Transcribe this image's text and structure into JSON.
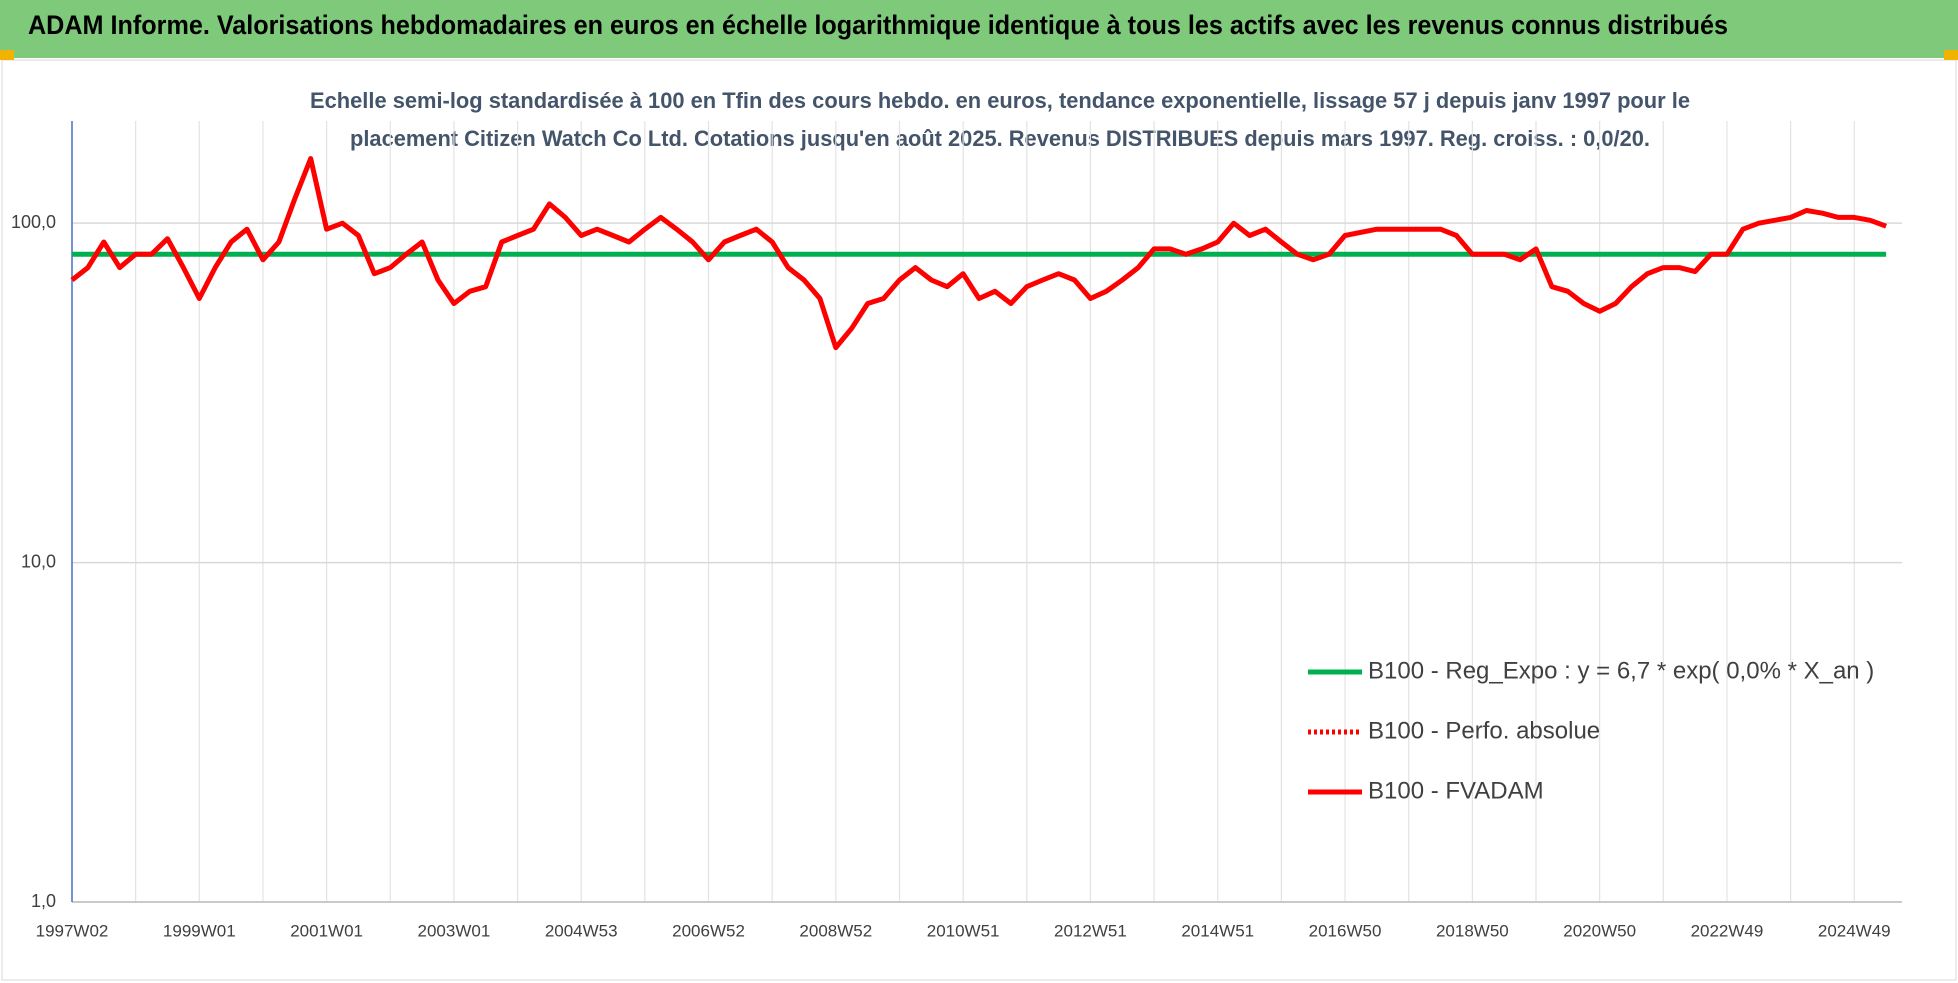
{
  "header": {
    "title": "ADAM Informe. Valorisations hebdomadaires en euros en échelle logarithmique identique à tous les actifs avec les revenus connus distribués"
  },
  "chart_data": {
    "type": "line",
    "title_lines": [
      "Echelle semi-log standardisée à 100 en Tfin des cours hebdo. en euros, tendance exponentielle, lissage 57 j depuis janv 1997 pour le",
      "placement Citizen Watch Co Ltd. Cotations jusqu'en août 2025. Revenus DISTRIBUES depuis mars 1997. Reg. croiss. : 0,0/20."
    ],
    "log_scale": true,
    "grid": true,
    "ylim": [
      1,
      200
    ],
    "yticks": [
      {
        "value": 1,
        "label": "1,0"
      },
      {
        "value": 10,
        "label": "10,0"
      },
      {
        "value": 100,
        "label": "100,0"
      }
    ],
    "categories": [
      "1997W02",
      null,
      null,
      null,
      null,
      null,
      null,
      null,
      "1999W01",
      null,
      null,
      null,
      null,
      null,
      null,
      null,
      "2001W01",
      null,
      null,
      null,
      null,
      null,
      null,
      null,
      "2003W01",
      null,
      null,
      null,
      null,
      null,
      null,
      null,
      "2004W53",
      null,
      null,
      null,
      null,
      null,
      null,
      null,
      "2006W52",
      null,
      null,
      null,
      null,
      null,
      null,
      null,
      "2008W52",
      null,
      null,
      null,
      null,
      null,
      null,
      null,
      "2010W51",
      null,
      null,
      null,
      null,
      null,
      null,
      null,
      "2012W51",
      null,
      null,
      null,
      null,
      null,
      null,
      null,
      "2014W51",
      null,
      null,
      null,
      null,
      null,
      null,
      null,
      "2016W50",
      null,
      null,
      null,
      null,
      null,
      null,
      null,
      "2018W50",
      null,
      null,
      null,
      null,
      null,
      null,
      null,
      "2020W50",
      null,
      null,
      null,
      null,
      null,
      null,
      null,
      "2022W49",
      null,
      null,
      null,
      null,
      null,
      null,
      null,
      "2024W49",
      null,
      null
    ],
    "series": [
      {
        "name": "B100 - Reg_Expo : y = 6,7 * exp( 0,0% *  X_an )",
        "color": "#00b050",
        "style": "solid",
        "values": [
          81,
          81,
          81,
          81,
          81,
          81,
          81,
          81,
          81,
          81,
          81,
          81,
          81,
          81,
          81,
          81,
          81,
          81,
          81,
          81,
          81,
          81,
          81,
          81,
          81,
          81,
          81,
          81,
          81,
          81,
          81,
          81,
          81,
          81,
          81,
          81,
          81,
          81,
          81,
          81,
          81,
          81,
          81,
          81,
          81,
          81,
          81,
          81,
          81,
          81,
          81,
          81,
          81,
          81,
          81,
          81,
          81,
          81,
          81,
          81,
          81,
          81,
          81,
          81,
          81,
          81,
          81,
          81,
          81,
          81,
          81,
          81,
          81,
          81,
          81,
          81,
          81,
          81,
          81,
          81,
          81,
          81,
          81,
          81,
          81,
          81,
          81,
          81,
          81,
          81,
          81,
          81,
          81,
          81,
          81,
          81,
          81,
          81,
          81,
          81,
          81,
          81,
          81,
          81,
          81,
          81,
          81,
          81,
          81,
          81,
          81,
          81,
          81,
          81,
          81
        ]
      },
      {
        "name": "B100 - Perfo. absolue",
        "color": "#ff0000",
        "style": "dotted",
        "values": [
          null,
          null,
          null,
          null,
          null,
          null,
          null,
          null,
          null,
          null,
          null,
          null,
          null,
          null,
          null,
          null,
          null,
          null,
          null,
          null,
          null,
          null,
          null,
          null,
          null,
          null,
          null,
          null,
          null,
          null,
          null,
          null,
          null,
          null,
          null,
          null,
          null,
          null,
          null,
          null,
          null,
          null,
          null,
          null,
          null,
          null,
          null,
          null,
          null,
          null,
          null,
          null,
          null,
          null,
          null,
          null,
          null,
          null,
          null,
          null,
          null,
          null,
          null,
          null,
          null,
          null,
          null,
          null,
          null,
          null,
          null,
          null,
          null,
          null,
          null,
          null,
          null,
          null,
          null,
          null,
          null,
          null,
          null,
          null,
          null,
          null,
          null,
          null,
          null,
          null,
          null,
          null,
          null,
          null,
          null,
          null,
          null,
          null,
          null,
          null,
          null,
          null,
          null,
          null,
          null,
          null,
          null,
          null,
          null,
          null,
          null,
          null,
          null,
          null,
          null
        ]
      },
      {
        "name": "B100 - FVADAM",
        "color": "#ff0000",
        "style": "solid",
        "values": [
          68,
          74,
          88,
          74,
          81,
          81,
          90,
          74,
          60,
          74,
          88,
          96,
          78,
          88,
          118,
          155,
          96,
          100,
          92,
          71,
          74,
          81,
          88,
          68,
          58,
          63,
          65,
          88,
          92,
          96,
          114,
          104,
          92,
          96,
          92,
          88,
          96,
          104,
          96,
          88,
          78,
          88,
          92,
          96,
          88,
          74,
          68,
          60,
          43,
          49,
          58,
          60,
          68,
          74,
          68,
          65,
          71,
          60,
          63,
          58,
          65,
          68,
          71,
          68,
          60,
          63,
          68,
          74,
          84,
          84,
          81,
          84,
          88,
          100,
          92,
          96,
          88,
          81,
          78,
          81,
          92,
          94,
          96,
          96,
          96,
          96,
          96,
          92,
          81,
          81,
          81,
          78,
          84,
          65,
          63,
          58,
          55,
          58,
          65,
          71,
          74,
          74,
          72,
          81,
          81,
          96,
          100,
          102,
          104,
          109,
          107,
          104,
          104,
          102,
          98
        ]
      }
    ]
  }
}
